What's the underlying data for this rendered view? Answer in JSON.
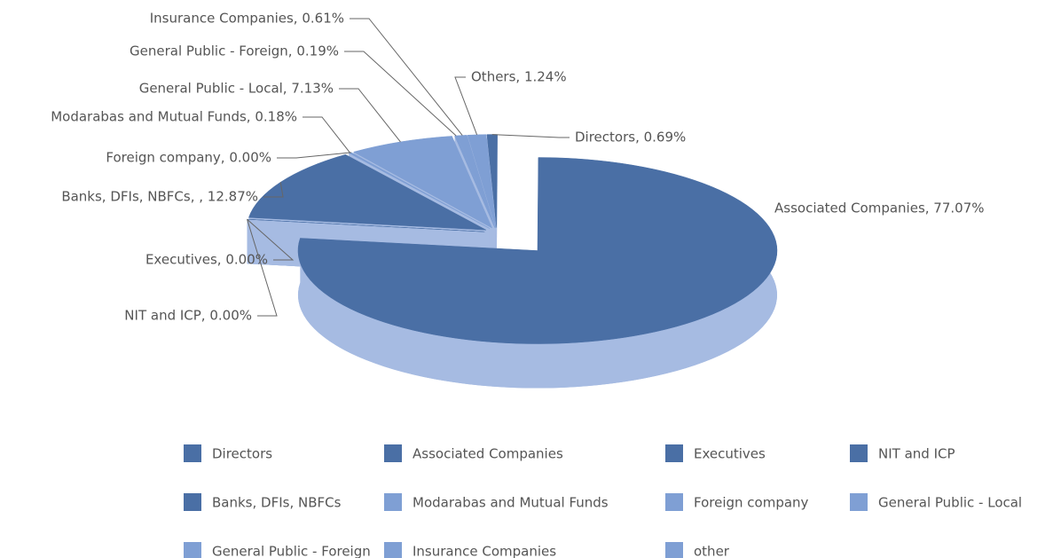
{
  "chart_data": {
    "type": "pie3d",
    "categories": [
      "Directors",
      "Associated Companies",
      "Executives",
      "NIT and ICP",
      "Banks, DFIs, NBFCs",
      "Modarabas and Mutual Funds",
      "Foreign company",
      "General Public - Local",
      "General Public - Foreign",
      "Insurance Companies",
      "other"
    ],
    "values": [
      0.69,
      77.07,
      0,
      0,
      12.87,
      0.18,
      0,
      7.13,
      0.19,
      0.61,
      1.24
    ],
    "value_labels": [
      "Directors, 0.69%",
      "Associated Companies, 77.07%",
      "Executives, 0.00%",
      "NIT and ICP, 0.00%",
      "Banks, DFIs, NBFCs, , 12.87%",
      "Modarabas and Mutual Funds, 0.18%",
      "Foreign company, 0.00%",
      "General Public - Local, 7.13%",
      "General Public - Foreign, 0.19%",
      "Insurance Companies, 0.61%",
      "Others, 1.24%"
    ],
    "colors": [
      "#4a6fa5",
      "#4a6fa5",
      "#4a6fa5",
      "#4a6fa5",
      "#4a6fa5",
      "#7f9fd4",
      "#7f9fd4",
      "#7f9fd4",
      "#7f9fd4",
      "#7f9fd4",
      "#7f9fd4"
    ],
    "legend": "bottom"
  }
}
